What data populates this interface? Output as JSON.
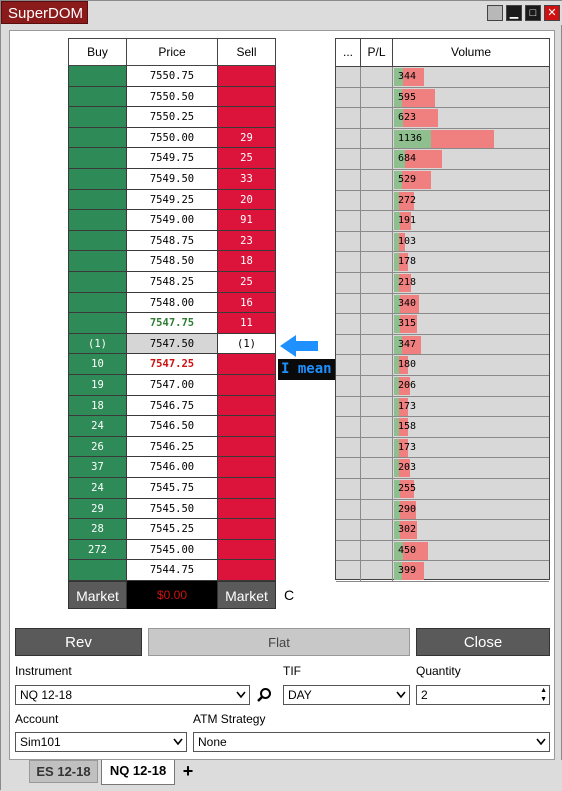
{
  "window": {
    "title": "SuperDOM"
  },
  "ladder": {
    "headers": {
      "buy": "Buy",
      "price": "Price",
      "sell": "Sell"
    },
    "rows": [
      {
        "buy": "",
        "price": "7550.75",
        "sell": "",
        "style": "normal"
      },
      {
        "buy": "",
        "price": "7550.50",
        "sell": "",
        "style": "normal"
      },
      {
        "buy": "",
        "price": "7550.25",
        "sell": "",
        "style": "normal"
      },
      {
        "buy": "",
        "price": "7550.00",
        "sell": "29",
        "style": "normal"
      },
      {
        "buy": "",
        "price": "7549.75",
        "sell": "25",
        "style": "normal"
      },
      {
        "buy": "",
        "price": "7549.50",
        "sell": "33",
        "style": "normal"
      },
      {
        "buy": "",
        "price": "7549.25",
        "sell": "20",
        "style": "normal"
      },
      {
        "buy": "",
        "price": "7549.00",
        "sell": "91",
        "style": "normal"
      },
      {
        "buy": "",
        "price": "7548.75",
        "sell": "23",
        "style": "normal"
      },
      {
        "buy": "",
        "price": "7548.50",
        "sell": "18",
        "style": "normal"
      },
      {
        "buy": "",
        "price": "7548.25",
        "sell": "25",
        "style": "normal"
      },
      {
        "buy": "",
        "price": "7548.00",
        "sell": "16",
        "style": "normal"
      },
      {
        "buy": "",
        "price": "7547.75",
        "sell": "11",
        "style": "ask"
      },
      {
        "buy": "(1)",
        "price": "7547.50",
        "sell": "(1)",
        "style": "current"
      },
      {
        "buy": "10",
        "price": "7547.25",
        "sell": "",
        "style": "bid"
      },
      {
        "buy": "19",
        "price": "7547.00",
        "sell": "",
        "style": "normal"
      },
      {
        "buy": "18",
        "price": "7546.75",
        "sell": "",
        "style": "normal"
      },
      {
        "buy": "24",
        "price": "7546.50",
        "sell": "",
        "style": "normal"
      },
      {
        "buy": "26",
        "price": "7546.25",
        "sell": "",
        "style": "normal"
      },
      {
        "buy": "37",
        "price": "7546.00",
        "sell": "",
        "style": "normal"
      },
      {
        "buy": "24",
        "price": "7545.75",
        "sell": "",
        "style": "normal"
      },
      {
        "buy": "29",
        "price": "7545.50",
        "sell": "",
        "style": "normal"
      },
      {
        "buy": "28",
        "price": "7545.25",
        "sell": "",
        "style": "normal"
      },
      {
        "buy": "272",
        "price": "7545.00",
        "sell": "",
        "style": "normal"
      },
      {
        "buy": "",
        "price": "7544.75",
        "sell": "",
        "style": "normal"
      }
    ],
    "market_buy_label": "Market",
    "pnl": "$0.00",
    "market_sell_label": "Market",
    "c_label": "C"
  },
  "annotation": {
    "text": "I mean THIS"
  },
  "volume": {
    "headers": {
      "dots": "...",
      "pl": "P/L",
      "volume": "Volume"
    },
    "rows": [
      {
        "v": "344",
        "g": 0.06,
        "r": 0.13
      },
      {
        "v": "595",
        "g": 0.05,
        "r": 0.21
      },
      {
        "v": "623",
        "g": 0.06,
        "r": 0.22
      },
      {
        "v": "1136",
        "g": 0.24,
        "r": 0.4
      },
      {
        "v": "684",
        "g": 0.07,
        "r": 0.24
      },
      {
        "v": "529",
        "g": 0.05,
        "r": 0.19
      },
      {
        "v": "272",
        "g": 0.03,
        "r": 0.1
      },
      {
        "v": "191",
        "g": 0.04,
        "r": 0.07
      },
      {
        "v": "103",
        "g": 0.03,
        "r": 0.04
      },
      {
        "v": "178",
        "g": 0.03,
        "r": 0.06
      },
      {
        "v": "218",
        "g": 0.03,
        "r": 0.08
      },
      {
        "v": "340",
        "g": 0.04,
        "r": 0.12
      },
      {
        "v": "315",
        "g": 0.04,
        "r": 0.11
      },
      {
        "v": "347",
        "g": 0.05,
        "r": 0.12
      },
      {
        "v": "180",
        "g": 0.03,
        "r": 0.06
      },
      {
        "v": "206",
        "g": 0.03,
        "r": 0.07
      },
      {
        "v": "173",
        "g": 0.03,
        "r": 0.06
      },
      {
        "v": "158",
        "g": 0.03,
        "r": 0.06
      },
      {
        "v": "173",
        "g": 0.03,
        "r": 0.06
      },
      {
        "v": "203",
        "g": 0.03,
        "r": 0.07
      },
      {
        "v": "255",
        "g": 0.04,
        "r": 0.09
      },
      {
        "v": "290",
        "g": 0.04,
        "r": 0.1
      },
      {
        "v": "302",
        "g": 0.04,
        "r": 0.11
      },
      {
        "v": "450",
        "g": 0.06,
        "r": 0.16
      },
      {
        "v": "399",
        "g": 0.05,
        "r": 0.14
      }
    ]
  },
  "controls": {
    "rev_label": "Rev",
    "flat_label": "Flat",
    "close_label": "Close",
    "instrument_label": "Instrument",
    "instrument_value": "NQ 12-18",
    "tif_label": "TIF",
    "tif_value": "DAY",
    "quantity_label": "Quantity",
    "quantity_value": "2",
    "account_label": "Account",
    "account_value": "Sim101",
    "atm_label": "ATM Strategy",
    "atm_value": "None"
  },
  "tabs": [
    {
      "label": "ES 12-18",
      "active": false
    },
    {
      "label": "NQ 12-18",
      "active": true
    }
  ],
  "add_tab_label": "+",
  "colors": {
    "buy": "#2e8b57",
    "sell": "#dc143c",
    "title": "#8b1a1a",
    "annotation": "#1e90ff"
  }
}
